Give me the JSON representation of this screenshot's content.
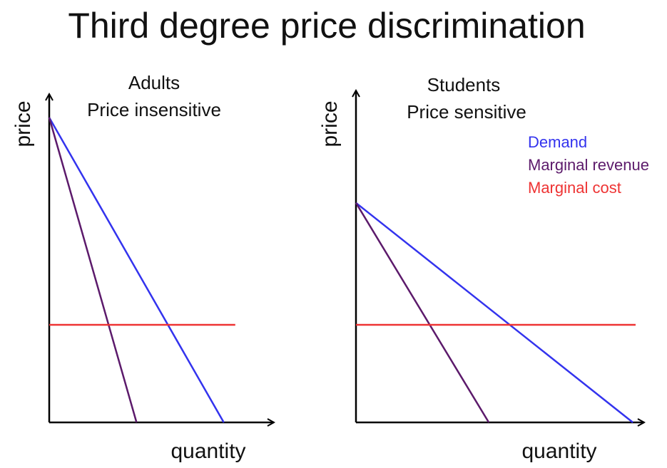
{
  "title": "Third degree price discrimination",
  "legend": {
    "placement": "top-right",
    "items": [
      {
        "label": "Demand",
        "color": "#3333ee"
      },
      {
        "label": "Marginal revenue",
        "color": "#5c1a6b"
      },
      {
        "label": "Marginal cost",
        "color": "#ee3333"
      }
    ]
  },
  "chart_data": [
    {
      "type": "line",
      "title": "Adults",
      "subtitle": "Price insensitive",
      "xlabel": "quantity",
      "ylabel": "price",
      "xlim": [
        0,
        10
      ],
      "ylim": [
        0,
        10
      ],
      "grid": false,
      "series": [
        {
          "name": "Demand",
          "color": "#3333ee",
          "x": [
            0,
            7.6
          ],
          "y": [
            10,
            0
          ]
        },
        {
          "name": "Marginal revenue",
          "color": "#5c1a6b",
          "x": [
            0,
            3.8
          ],
          "y": [
            10,
            0
          ]
        },
        {
          "name": "Marginal cost",
          "color": "#ee3333",
          "x": [
            0,
            8.1
          ],
          "y": [
            3.2,
            3.2
          ]
        }
      ]
    },
    {
      "type": "line",
      "title": "Students",
      "subtitle": "Price sensitive",
      "xlabel": "quantity",
      "ylabel": "price",
      "xlim": [
        0,
        10
      ],
      "ylim": [
        0,
        10
      ],
      "grid": false,
      "series": [
        {
          "name": "Demand",
          "color": "#3333ee",
          "x": [
            0,
            9.9
          ],
          "y": [
            7.2,
            0
          ]
        },
        {
          "name": "Marginal revenue",
          "color": "#5c1a6b",
          "x": [
            0,
            4.75
          ],
          "y": [
            7.2,
            0
          ]
        },
        {
          "name": "Marginal cost",
          "color": "#ee3333",
          "x": [
            0,
            10
          ],
          "y": [
            3.2,
            3.2
          ]
        }
      ]
    }
  ]
}
